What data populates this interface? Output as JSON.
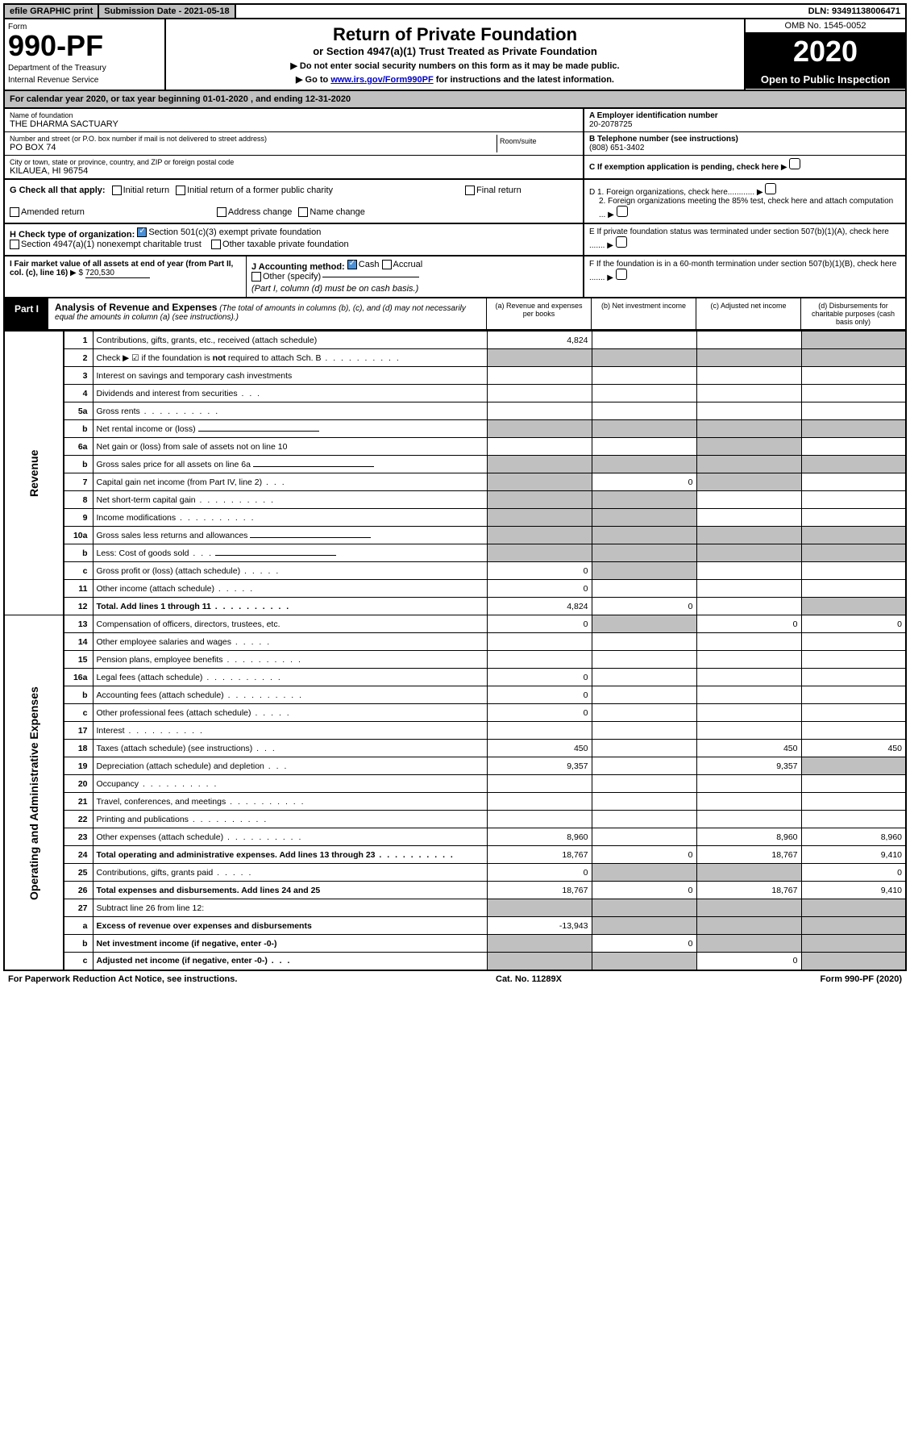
{
  "topbar": {
    "efile": "efile GRAPHIC print",
    "subdate_label": "Submission Date - 2021-05-18",
    "dln": "DLN: 93491138006471"
  },
  "header": {
    "form_word": "Form",
    "form_num": "990-PF",
    "dept": "Department of the Treasury",
    "irs": "Internal Revenue Service",
    "title": "Return of Private Foundation",
    "subtitle": "or Section 4947(a)(1) Trust Treated as Private Foundation",
    "instr1": "▶ Do not enter social security numbers on this form as it may be made public.",
    "instr2_pre": "▶ Go to ",
    "instr2_link": "www.irs.gov/Form990PF",
    "instr2_post": " for instructions and the latest information.",
    "omb": "OMB No. 1545-0052",
    "year": "2020",
    "open": "Open to Public Inspection"
  },
  "cal": "For calendar year 2020, or tax year beginning 01-01-2020            , and ending 12-31-2020",
  "info": {
    "name_label": "Name of foundation",
    "name": "THE DHARMA SACTUARY",
    "addr_label": "Number and street (or P.O. box number if mail is not delivered to street address)",
    "addr": "PO BOX 74",
    "room_label": "Room/suite",
    "city_label": "City or town, state or province, country, and ZIP or foreign postal code",
    "city": "KILAUEA, HI  96754",
    "a_label": "A Employer identification number",
    "a_val": "20-2078725",
    "b_label": "B Telephone number (see instructions)",
    "b_val": "(808) 651-3402",
    "c_label": "C If exemption application is pending, check here",
    "d1": "D 1. Foreign organizations, check here............",
    "d2": "2. Foreign organizations meeting the 85% test, check here and attach computation ...",
    "e": "E   If private foundation status was terminated under section 507(b)(1)(A), check here .......",
    "f": "F   If the foundation is in a 60-month termination under section 507(b)(1)(B), check here .......",
    "g_label": "G Check all that apply:",
    "g_opts": [
      "Initial return",
      "Initial return of a former public charity",
      "Final return",
      "Amended return",
      "Address change",
      "Name change"
    ],
    "h_label": "H Check type of organization:",
    "h_opt1": "Section 501(c)(3) exempt private foundation",
    "h_opt2": "Section 4947(a)(1) nonexempt charitable trust",
    "h_opt3": "Other taxable private foundation",
    "i_label": "I Fair market value of all assets at end of year (from Part II, col. (c), line 16)",
    "i_val": "720,530",
    "j_label": "J Accounting method:",
    "j_cash": "Cash",
    "j_accrual": "Accrual",
    "j_other": "Other (specify)",
    "j_note": "(Part I, column (d) must be on cash basis.)"
  },
  "part1": {
    "tab": "Part I",
    "title": "Analysis of Revenue and Expenses",
    "note": "(The total of amounts in columns (b), (c), and (d) may not necessarily equal the amounts in column (a) (see instructions).)",
    "cols": {
      "a": "(a)   Revenue and expenses per books",
      "b": "(b)   Net investment income",
      "c": "(c)   Adjusted net income",
      "d": "(d)   Disbursements for charitable purposes (cash basis only)"
    }
  },
  "sides": {
    "rev": "Revenue",
    "exp": "Operating and Administrative Expenses"
  },
  "rows": [
    {
      "n": "1",
      "d": "Contributions, gifts, grants, etc., received (attach schedule)",
      "a": "4,824",
      "shade": [
        "d"
      ]
    },
    {
      "n": "2",
      "d": "Check ▶ ☑ if the foundation is not required to attach Sch. B",
      "shade": [
        "a",
        "b",
        "c",
        "d"
      ],
      "dots": true,
      "bold_not": true
    },
    {
      "n": "3",
      "d": "Interest on savings and temporary cash investments"
    },
    {
      "n": "4",
      "d": "Dividends and interest from securities",
      "dots3": true
    },
    {
      "n": "5a",
      "d": "Gross rents",
      "dots": true
    },
    {
      "n": "b",
      "d": "Net rental income or (loss)",
      "shade": [
        "a",
        "b",
        "c",
        "d"
      ],
      "line": true
    },
    {
      "n": "6a",
      "d": "Net gain or (loss) from sale of assets not on line 10",
      "shade": [
        "c"
      ]
    },
    {
      "n": "b",
      "d": "Gross sales price for all assets on line 6a",
      "shade": [
        "a",
        "b",
        "c",
        "d"
      ],
      "line": true
    },
    {
      "n": "7",
      "d": "Capital gain net income (from Part IV, line 2)",
      "dots3": true,
      "shade": [
        "a",
        "c"
      ],
      "b": "0"
    },
    {
      "n": "8",
      "d": "Net short-term capital gain",
      "dots": true,
      "shade": [
        "a",
        "b"
      ]
    },
    {
      "n": "9",
      "d": "Income modifications",
      "dots": true,
      "shade": [
        "a",
        "b"
      ]
    },
    {
      "n": "10a",
      "d": "Gross sales less returns and allowances",
      "shade": [
        "a",
        "b",
        "c",
        "d"
      ],
      "line": true
    },
    {
      "n": "b",
      "d": "Less: Cost of goods sold",
      "dots3": true,
      "shade": [
        "a",
        "b",
        "c",
        "d"
      ],
      "line": true
    },
    {
      "n": "c",
      "d": "Gross profit or (loss) (attach schedule)",
      "dots5": true,
      "shade": [
        "b"
      ],
      "a": "0"
    },
    {
      "n": "11",
      "d": "Other income (attach schedule)",
      "dots5": true,
      "a": "0"
    },
    {
      "n": "12",
      "d": "Total. Add lines 1 through 11",
      "dots": true,
      "bold": true,
      "a": "4,824",
      "b": "0",
      "shade": [
        "d"
      ]
    },
    {
      "n": "13",
      "d": "Compensation of officers, directors, trustees, etc.",
      "a": "0",
      "shade": [
        "b"
      ],
      "c": "0",
      "dv": "0"
    },
    {
      "n": "14",
      "d": "Other employee salaries and wages",
      "dots5": true
    },
    {
      "n": "15",
      "d": "Pension plans, employee benefits",
      "dots": true
    },
    {
      "n": "16a",
      "d": "Legal fees (attach schedule)",
      "dots": true,
      "a": "0"
    },
    {
      "n": "b",
      "d": "Accounting fees (attach schedule)",
      "dots": true,
      "a": "0"
    },
    {
      "n": "c",
      "d": "Other professional fees (attach schedule)",
      "dots5": true,
      "a": "0"
    },
    {
      "n": "17",
      "d": "Interest",
      "dots": true
    },
    {
      "n": "18",
      "d": "Taxes (attach schedule) (see instructions)",
      "dots3": true,
      "a": "450",
      "c": "450",
      "dv": "450"
    },
    {
      "n": "19",
      "d": "Depreciation (attach schedule) and depletion",
      "dots3": true,
      "a": "9,357",
      "c": "9,357",
      "shade": [
        "d"
      ]
    },
    {
      "n": "20",
      "d": "Occupancy",
      "dots": true
    },
    {
      "n": "21",
      "d": "Travel, conferences, and meetings",
      "dots": true
    },
    {
      "n": "22",
      "d": "Printing and publications",
      "dots": true
    },
    {
      "n": "23",
      "d": "Other expenses (attach schedule)",
      "dots": true,
      "a": "8,960",
      "c": "8,960",
      "dv": "8,960"
    },
    {
      "n": "24",
      "d": "Total operating and administrative expenses. Add lines 13 through 23",
      "dots": true,
      "bold": true,
      "a": "18,767",
      "b": "0",
      "c": "18,767",
      "dv": "9,410"
    },
    {
      "n": "25",
      "d": "Contributions, gifts, grants paid",
      "dots5": true,
      "a": "0",
      "shade": [
        "b",
        "c"
      ],
      "dv": "0"
    },
    {
      "n": "26",
      "d": "Total expenses and disbursements. Add lines 24 and 25",
      "bold": true,
      "a": "18,767",
      "b": "0",
      "c": "18,767",
      "dv": "9,410"
    },
    {
      "n": "27",
      "d": "Subtract line 26 from line 12:",
      "shade": [
        "a",
        "b",
        "c",
        "d"
      ]
    },
    {
      "n": "a",
      "d": "Excess of revenue over expenses and disbursements",
      "bold": true,
      "a": "-13,943",
      "shade": [
        "b",
        "c",
        "d"
      ]
    },
    {
      "n": "b",
      "d": "Net investment income (if negative, enter -0-)",
      "bold": true,
      "shade": [
        "a",
        "c",
        "d"
      ],
      "b": "0"
    },
    {
      "n": "c",
      "d": "Adjusted net income (if negative, enter -0-)",
      "bold": true,
      "dots3": true,
      "shade": [
        "a",
        "b",
        "d"
      ],
      "c": "0"
    }
  ],
  "footer": {
    "left": "For Paperwork Reduction Act Notice, see instructions.",
    "mid": "Cat. No. 11289X",
    "right": "Form 990-PF (2020)"
  }
}
